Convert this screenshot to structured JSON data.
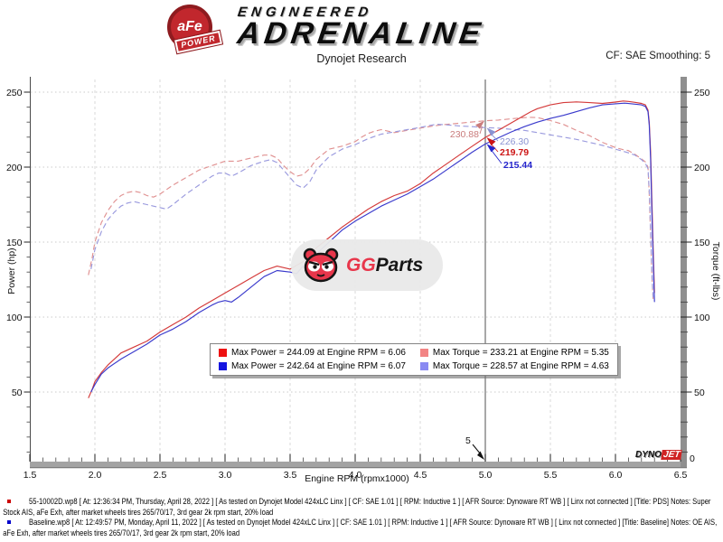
{
  "header": {
    "badge_circle_text": "aFe",
    "badge_banner_text": "POWER",
    "brand_line1": "ENGINEERED",
    "brand_line2": "ADRENALINE",
    "subtitle": "Dynojet Research",
    "smoothing": "CF: SAE Smoothing: 5"
  },
  "chart": {
    "x_axis_label": "Engine RPM (rpmx1000)",
    "y_left_label": "Power (hp)",
    "y_right_label": "Torque (ft-lbs)",
    "right_axis_zero_label": "0",
    "cursor_rpm_label": "5"
  },
  "legend": {
    "items": [
      {
        "color": "#ee1111",
        "text": "Max Power = 244.09 at Engine RPM = 6.06"
      },
      {
        "color": "#f28484",
        "text": "Max Torque = 233.21 at Engine RPM = 5.35"
      },
      {
        "color": "#1515e0",
        "text": "Max Power = 242.64 at Engine RPM = 6.07"
      },
      {
        "color": "#8a8af2",
        "text": "Max Torque = 228.57 at Engine RPM = 4.63"
      }
    ]
  },
  "cursor_annotations": [
    {
      "value": "230.88",
      "color": "#c97c7c"
    },
    {
      "value": "226.30",
      "color": "#8a92d2"
    },
    {
      "value": "219.79",
      "color": "#cc1414"
    },
    {
      "value": "215.44",
      "color": "#2424cc"
    }
  ],
  "watermark": {
    "gg": "GG",
    "parts": "Parts"
  },
  "dynojet": {
    "part1": "DYNO",
    "part2": "JET"
  },
  "footer": {
    "runs": [
      {
        "bullet_color": "#cc0000",
        "line1": "55-10002D.wp8 [ At: 12:36:34 PM, Thursday, April 28, 2022 ] [ As tested on Dynojet Model 424xLC Linx ] [ CF: SAE 1.01 ] [ RPM: Inductive 1 ] [ AFR Source: Dynoware RT WB ] [ Linx not connected ] [Title: PDS]  Notes: Super",
        "line2": "Stock AIS, aFe Exh, after market wheels tires 265/70/17, 3rd gear 2k rpm start, 20% load"
      },
      {
        "bullet_color": "#0000cc",
        "line1": "Baseline.wp8 [ At: 12:49:57 PM, Monday, April 11, 2022 ] [ As tested on Dynojet Model 424xLC Linx ] [ CF: SAE 1.01 ] [ RPM: Inductive 1 ] [ AFR Source: Dynoware RT WB ] [ Linx not connected ] [Title: Baseline]  Notes: OE AIS,",
        "line2": "aFe Exh, after market wheels tires 265/70/17, 3rd gear 2k rpm start, 20% load"
      }
    ]
  },
  "chart_data": {
    "type": "line",
    "title": "aFe Power dyno comparison, SAE corrected, smoothing 5",
    "xlabel": "Engine RPM (rpmx1000)",
    "ylabel_left": "Power (hp)",
    "ylabel_right": "Torque (ft-lbs)",
    "xlim": [
      1.5,
      6.5
    ],
    "ylim": [
      0,
      258
    ],
    "xticks": [
      1.5,
      2.0,
      2.5,
      3.0,
      3.5,
      4.0,
      4.5,
      5.0,
      5.5,
      6.0,
      6.5
    ],
    "yticks": [
      50,
      100,
      150,
      200,
      250
    ],
    "grid": true,
    "cursor_x": 5.0,
    "cursor_values": [
      230.88,
      226.3,
      219.79,
      215.44
    ],
    "max_markers": [
      {
        "series": "55-10002D Power",
        "value": 244.09,
        "rpm": 6.06
      },
      {
        "series": "Baseline Power",
        "value": 242.64,
        "rpm": 6.07
      },
      {
        "series": "55-10002D Torque",
        "value": 233.21,
        "rpm": 5.35
      },
      {
        "series": "Baseline Torque",
        "value": 228.57,
        "rpm": 4.63
      }
    ],
    "series": [
      {
        "name": "55-10002D Torque (ft-lbs)",
        "style": "dashed",
        "color": "#e09191",
        "points": [
          [
            1.95,
            128
          ],
          [
            1.98,
            140
          ],
          [
            2.0,
            150
          ],
          [
            2.05,
            163
          ],
          [
            2.1,
            171
          ],
          [
            2.15,
            177
          ],
          [
            2.2,
            181
          ],
          [
            2.25,
            183
          ],
          [
            2.3,
            184
          ],
          [
            2.35,
            183
          ],
          [
            2.4,
            181
          ],
          [
            2.45,
            180
          ],
          [
            2.5,
            182
          ],
          [
            2.6,
            188
          ],
          [
            2.7,
            193
          ],
          [
            2.8,
            198
          ],
          [
            2.9,
            201
          ],
          [
            3.0,
            204
          ],
          [
            3.1,
            204
          ],
          [
            3.2,
            206
          ],
          [
            3.3,
            208
          ],
          [
            3.35,
            208
          ],
          [
            3.4,
            206
          ],
          [
            3.45,
            201
          ],
          [
            3.5,
            197
          ],
          [
            3.55,
            194
          ],
          [
            3.6,
            195
          ],
          [
            3.65,
            199
          ],
          [
            3.7,
            205
          ],
          [
            3.8,
            212
          ],
          [
            3.9,
            214
          ],
          [
            4.0,
            217
          ],
          [
            4.05,
            220
          ],
          [
            4.1,
            222.5
          ],
          [
            4.15,
            224
          ],
          [
            4.2,
            225
          ],
          [
            4.3,
            223
          ],
          [
            4.4,
            224.5
          ],
          [
            4.5,
            226
          ],
          [
            4.6,
            227.5
          ],
          [
            4.7,
            228.5
          ],
          [
            4.8,
            229.3
          ],
          [
            4.9,
            230.1
          ],
          [
            5.0,
            230.88
          ],
          [
            5.1,
            231.4
          ],
          [
            5.2,
            232.2
          ],
          [
            5.3,
            233
          ],
          [
            5.35,
            233.21
          ],
          [
            5.4,
            233
          ],
          [
            5.5,
            231
          ],
          [
            5.6,
            228.5
          ],
          [
            5.7,
            224.5
          ],
          [
            5.8,
            221
          ],
          [
            5.9,
            216.5
          ],
          [
            6.0,
            213
          ],
          [
            6.06,
            211.6
          ],
          [
            6.1,
            211
          ],
          [
            6.15,
            208.5
          ],
          [
            6.2,
            205.5
          ],
          [
            6.23,
            203.5
          ],
          [
            6.25,
            200
          ],
          [
            6.26,
            182
          ],
          [
            6.27,
            155
          ],
          [
            6.28,
            128
          ],
          [
            6.29,
            110
          ]
        ]
      },
      {
        "name": "Baseline Torque (ft-lbs)",
        "style": "dashed",
        "color": "#9a9ade",
        "points": [
          [
            1.97,
            132
          ],
          [
            2.0,
            145
          ],
          [
            2.05,
            157
          ],
          [
            2.1,
            165
          ],
          [
            2.15,
            170
          ],
          [
            2.2,
            174
          ],
          [
            2.25,
            176
          ],
          [
            2.3,
            177
          ],
          [
            2.35,
            176
          ],
          [
            2.4,
            175
          ],
          [
            2.45,
            174
          ],
          [
            2.5,
            173
          ],
          [
            2.55,
            172
          ],
          [
            2.6,
            175
          ],
          [
            2.7,
            182
          ],
          [
            2.8,
            188
          ],
          [
            2.9,
            194
          ],
          [
            2.95,
            196
          ],
          [
            3.0,
            196
          ],
          [
            3.05,
            194
          ],
          [
            3.1,
            196
          ],
          [
            3.2,
            201
          ],
          [
            3.3,
            204
          ],
          [
            3.35,
            205
          ],
          [
            3.4,
            203
          ],
          [
            3.45,
            198
          ],
          [
            3.5,
            193
          ],
          [
            3.55,
            188
          ],
          [
            3.6,
            186
          ],
          [
            3.65,
            190
          ],
          [
            3.7,
            198
          ],
          [
            3.8,
            207
          ],
          [
            3.9,
            212
          ],
          [
            4.0,
            215
          ],
          [
            4.1,
            219
          ],
          [
            4.2,
            222
          ],
          [
            4.3,
            223.5
          ],
          [
            4.4,
            225
          ],
          [
            4.5,
            226.5
          ],
          [
            4.6,
            228.2
          ],
          [
            4.63,
            228.57
          ],
          [
            4.7,
            228.2
          ],
          [
            4.8,
            227.5
          ],
          [
            4.9,
            227
          ],
          [
            5.0,
            226.3
          ],
          [
            5.1,
            226
          ],
          [
            5.2,
            225.2
          ],
          [
            5.3,
            224.5
          ],
          [
            5.4,
            223
          ],
          [
            5.5,
            221.5
          ],
          [
            5.6,
            220
          ],
          [
            5.7,
            218.5
          ],
          [
            5.8,
            216.5
          ],
          [
            5.9,
            214.5
          ],
          [
            6.0,
            212
          ],
          [
            6.1,
            209.5
          ],
          [
            6.15,
            208
          ],
          [
            6.2,
            205
          ],
          [
            6.23,
            202.5
          ],
          [
            6.25,
            199
          ],
          [
            6.26,
            185
          ],
          [
            6.27,
            158
          ],
          [
            6.28,
            130
          ],
          [
            6.29,
            112
          ]
        ]
      },
      {
        "name": "55-10002D Power (hp)",
        "style": "solid",
        "color": "#d43a3a",
        "points": [
          [
            1.95,
            46
          ],
          [
            1.98,
            52
          ],
          [
            2.0,
            57
          ],
          [
            2.05,
            63
          ],
          [
            2.1,
            68
          ],
          [
            2.2,
            76
          ],
          [
            2.3,
            80
          ],
          [
            2.4,
            84
          ],
          [
            2.5,
            90
          ],
          [
            2.6,
            95
          ],
          [
            2.7,
            100
          ],
          [
            2.8,
            106
          ],
          [
            2.9,
            111
          ],
          [
            3.0,
            116
          ],
          [
            3.1,
            121
          ],
          [
            3.2,
            126
          ],
          [
            3.3,
            131
          ],
          [
            3.4,
            134
          ],
          [
            3.5,
            132
          ],
          [
            3.6,
            137
          ],
          [
            3.7,
            146
          ],
          [
            3.8,
            153
          ],
          [
            3.9,
            160
          ],
          [
            4.0,
            166
          ],
          [
            4.1,
            172
          ],
          [
            4.2,
            177
          ],
          [
            4.3,
            181
          ],
          [
            4.4,
            184
          ],
          [
            4.5,
            189
          ],
          [
            4.6,
            196
          ],
          [
            4.7,
            202
          ],
          [
            4.8,
            208
          ],
          [
            4.9,
            214
          ],
          [
            5.0,
            219.79
          ],
          [
            5.1,
            224.5
          ],
          [
            5.2,
            229.5
          ],
          [
            5.3,
            234.5
          ],
          [
            5.35,
            237
          ],
          [
            5.4,
            239
          ],
          [
            5.5,
            241.5
          ],
          [
            5.6,
            243
          ],
          [
            5.7,
            243.5
          ],
          [
            5.8,
            243
          ],
          [
            5.9,
            242.5
          ],
          [
            6.0,
            243.4
          ],
          [
            6.06,
            244.09
          ],
          [
            6.1,
            243.8
          ],
          [
            6.15,
            243.2
          ],
          [
            6.2,
            242.5
          ],
          [
            6.23,
            241.5
          ],
          [
            6.25,
            238
          ],
          [
            6.26,
            230
          ],
          [
            6.27,
            210
          ],
          [
            6.28,
            178
          ],
          [
            6.29,
            144
          ],
          [
            6.3,
            116
          ]
        ]
      },
      {
        "name": "Baseline Power (hp)",
        "style": "solid",
        "color": "#3a3acc",
        "points": [
          [
            1.97,
            50
          ],
          [
            2.0,
            55
          ],
          [
            2.05,
            62
          ],
          [
            2.1,
            66
          ],
          [
            2.2,
            72
          ],
          [
            2.3,
            77
          ],
          [
            2.4,
            82
          ],
          [
            2.5,
            88
          ],
          [
            2.6,
            92
          ],
          [
            2.7,
            97
          ],
          [
            2.8,
            103
          ],
          [
            2.9,
            108
          ],
          [
            2.95,
            110
          ],
          [
            3.0,
            111
          ],
          [
            3.05,
            110
          ],
          [
            3.1,
            113
          ],
          [
            3.2,
            120
          ],
          [
            3.3,
            127
          ],
          [
            3.4,
            131
          ],
          [
            3.5,
            130
          ],
          [
            3.55,
            129
          ],
          [
            3.6,
            134
          ],
          [
            3.7,
            142
          ],
          [
            3.8,
            150
          ],
          [
            3.9,
            158
          ],
          [
            4.0,
            164
          ],
          [
            4.1,
            169
          ],
          [
            4.2,
            174
          ],
          [
            4.3,
            178
          ],
          [
            4.4,
            182
          ],
          [
            4.5,
            187
          ],
          [
            4.6,
            192
          ],
          [
            4.7,
            198
          ],
          [
            4.8,
            204
          ],
          [
            4.9,
            210
          ],
          [
            5.0,
            215.44
          ],
          [
            5.1,
            219.5
          ],
          [
            5.2,
            223.5
          ],
          [
            5.3,
            227
          ],
          [
            5.4,
            230
          ],
          [
            5.5,
            232.5
          ],
          [
            5.6,
            234.5
          ],
          [
            5.7,
            237
          ],
          [
            5.8,
            239.5
          ],
          [
            5.9,
            241.5
          ],
          [
            6.0,
            242.2
          ],
          [
            6.07,
            242.64
          ],
          [
            6.1,
            242.4
          ],
          [
            6.15,
            242
          ],
          [
            6.2,
            241.5
          ],
          [
            6.23,
            240.5
          ],
          [
            6.25,
            237
          ],
          [
            6.26,
            228
          ],
          [
            6.27,
            205
          ],
          [
            6.28,
            170
          ],
          [
            6.29,
            138
          ],
          [
            6.3,
            110
          ]
        ]
      }
    ]
  }
}
